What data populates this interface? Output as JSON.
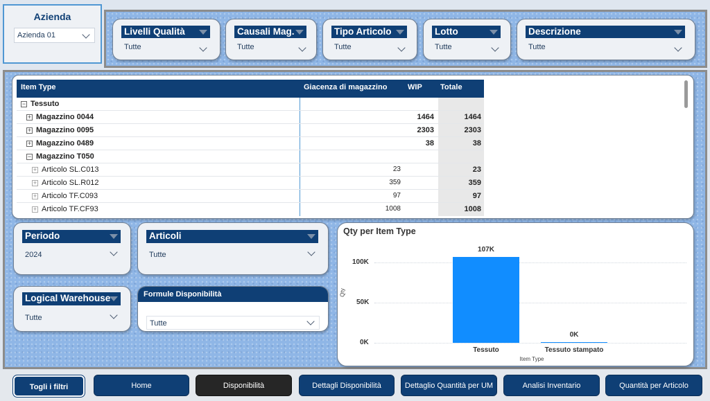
{
  "azienda": {
    "title": "Azienda",
    "value": "Azienda 01"
  },
  "top_filters": [
    {
      "label": "Livelli Qualità",
      "value": "Tutte"
    },
    {
      "label": "Causali Mag.",
      "value": "Tutte"
    },
    {
      "label": "Tipo Articolo",
      "value": "Tutte"
    },
    {
      "label": "Lotto",
      "value": "Tutte"
    },
    {
      "label": "Descrizione",
      "value": "Tutte"
    }
  ],
  "matrix": {
    "headers": {
      "item_type": "Item Type",
      "giacenza": "Giacenza di magazzino",
      "wip": "WIP",
      "totale": "Totale"
    },
    "rows": [
      {
        "label": "Tessuto",
        "toggle": "⊟",
        "giacenza": "",
        "wip": "",
        "totale": ""
      },
      {
        "label": "Magazzino 0044",
        "toggle": "⊞",
        "giacenza": "",
        "wip": "1464",
        "totale": "1464"
      },
      {
        "label": "Magazzino 0095",
        "toggle": "⊞",
        "giacenza": "",
        "wip": "2303",
        "totale": "2303"
      },
      {
        "label": "Magazzino 0489",
        "toggle": "⊞",
        "giacenza": "",
        "wip": "38",
        "totale": "38"
      },
      {
        "label": "Magazzino T050",
        "toggle": "⊟",
        "giacenza": "",
        "wip": "",
        "totale": ""
      },
      {
        "label": "Articolo SL.C013",
        "toggle": "⊞",
        "giacenza": "23",
        "wip": "",
        "totale": "23"
      },
      {
        "label": "Articolo SL.R012",
        "toggle": "⊞",
        "giacenza": "359",
        "wip": "",
        "totale": "359"
      },
      {
        "label": "Articolo TF.C093",
        "toggle": "⊞",
        "giacenza": "97",
        "wip": "",
        "totale": "97"
      },
      {
        "label": "Articolo TF.CF93",
        "toggle": "⊞",
        "giacenza": "1008",
        "wip": "",
        "totale": "1008"
      }
    ]
  },
  "lower_filters": {
    "periodo": {
      "label": "Periodo",
      "value": "2024"
    },
    "articoli": {
      "label": "Articoli",
      "value": "Tutte"
    },
    "logical_warehouse": {
      "label": "Logical Warehouse",
      "value": "Tutte"
    },
    "formule": {
      "label": "Formule Disponibilità",
      "value": "Tutte"
    }
  },
  "chart_data": {
    "type": "bar",
    "title": "Qty per Item Type",
    "xlabel": "Item Type",
    "ylabel": "Qty",
    "categories": [
      "Tessuto",
      "Tessuto stampato"
    ],
    "values": [
      107000,
      0
    ],
    "data_labels": [
      "107K",
      "0K"
    ],
    "y_ticks": [
      0,
      50000,
      100000
    ],
    "y_tick_labels": [
      "0K",
      "50K",
      "100K"
    ],
    "ylim": [
      0,
      115000
    ],
    "grid": true,
    "bar_color": "#118dff"
  },
  "nav": {
    "clear_filters": "Togli i filtri",
    "buttons": [
      "Home",
      "Disponibilità",
      "Dettagli Disponibilità",
      "Dettaglio Quantità per UM",
      "Analisi Inventario",
      "Quantità per Articolo"
    ],
    "active_index": 1
  },
  "colors": {
    "header_navy": "#0f3f75",
    "bar_blue": "#118dff",
    "active_nav": "#262626"
  }
}
